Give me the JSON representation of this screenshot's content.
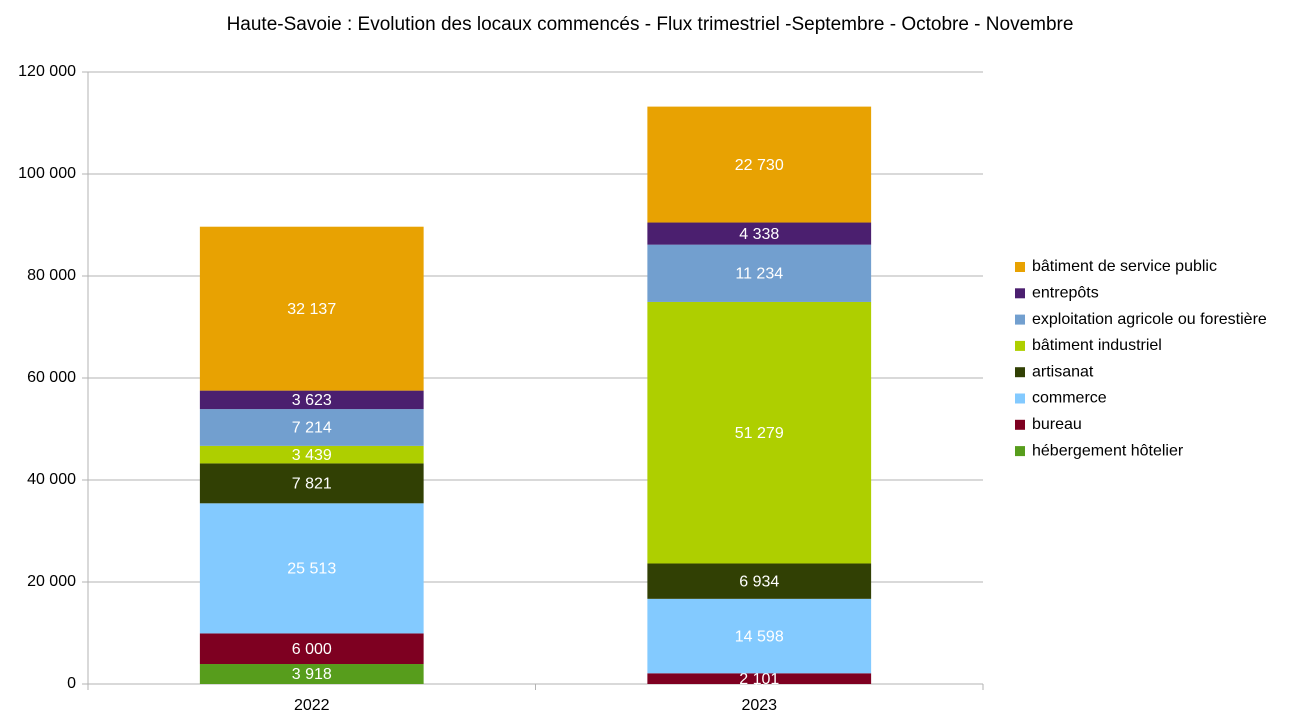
{
  "chart_data": {
    "type": "stacked_bar",
    "title": "Haute-Savoie : Evolution des locaux commencés - Flux trimestriel -Septembre - Octobre - Novembre",
    "categories": [
      "2022",
      "2023"
    ],
    "series": [
      {
        "name": "hébergement hôtelier",
        "color": "#579d1c",
        "values": [
          3918,
          0
        ],
        "value_labels": [
          "3 918",
          "0"
        ]
      },
      {
        "name": "bureau",
        "color": "#7e0021",
        "values": [
          6000,
          2101
        ],
        "value_labels": [
          "6 000",
          "2 101"
        ]
      },
      {
        "name": "commerce",
        "color": "#83caff",
        "values": [
          25513,
          14598
        ],
        "value_labels": [
          "25 513",
          "14 598"
        ]
      },
      {
        "name": "artisanat",
        "color": "#314004",
        "values": [
          7821,
          6934
        ],
        "value_labels": [
          "7 821",
          "6 934"
        ]
      },
      {
        "name": "bâtiment  industriel",
        "color": "#aecf00",
        "values": [
          3439,
          51279
        ],
        "value_labels": [
          "3 439",
          "51 279"
        ]
      },
      {
        "name": "exploitation agricole ou forestière",
        "color": "#729fcf",
        "values": [
          7214,
          11234
        ],
        "value_labels": [
          "7 214",
          "11 234"
        ]
      },
      {
        "name": "entrepôts",
        "color": "#4b1f6f",
        "values": [
          3623,
          4338
        ],
        "value_labels": [
          "3 623",
          "4 338"
        ]
      },
      {
        "name": "bâtiment de service  public",
        "color": "#e8a202",
        "values": [
          32137,
          22730
        ],
        "value_labels": [
          "32 137",
          "22 730"
        ]
      }
    ],
    "ylim": [
      0,
      120000
    ],
    "yticks": [
      0,
      {
        "value": 20000,
        "label": "20 000"
      },
      {
        "value": 40000,
        "label": "40 000"
      },
      {
        "value": 60000,
        "label": "60 000"
      },
      {
        "value": 80000,
        "label": "80 000"
      },
      {
        "value": 100000,
        "label": "100 000"
      },
      {
        "value": 120000,
        "label": "120 000"
      }
    ],
    "grid": true,
    "legend": "right"
  }
}
